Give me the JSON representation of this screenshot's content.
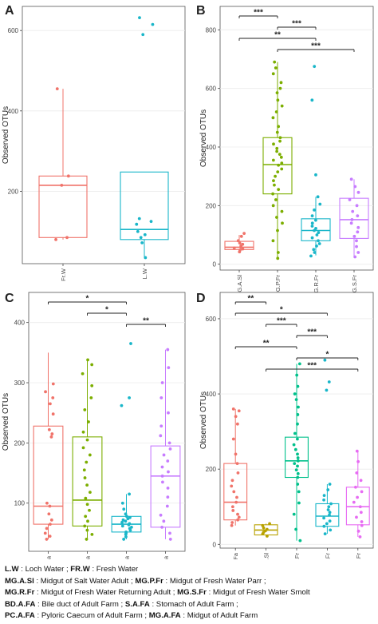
{
  "chart_data": [
    {
      "panel": "A",
      "type": "box",
      "ylabel": "Observed OTUs",
      "ylim": [
        20,
        660
      ],
      "yticks": [
        200,
        400,
        600
      ],
      "categories": [
        "Fr.W",
        "L.W"
      ],
      "colors": [
        "#f0736a",
        "#19b6c9"
      ],
      "boxes": [
        {
          "q1": 85,
          "median": 215,
          "q3": 238,
          "whisker_low": 80,
          "whisker_high": 455
        },
        {
          "q1": 80,
          "median": 105,
          "q3": 248,
          "whisker_low": 35,
          "whisker_high": 248
        }
      ],
      "points": [
        [
          85,
          80,
          215,
          238,
          455
        ],
        [
          35,
          72,
          85,
          92,
          100,
          118,
          125,
          132,
          590,
          615,
          632
        ]
      ],
      "comparisons": []
    },
    {
      "panel": "B",
      "type": "box",
      "ylabel": "Observed OTUs",
      "ylim": [
        -20,
        880
      ],
      "yticks": [
        0,
        200,
        400,
        600,
        800
      ],
      "categories": [
        "MG.A.Sl",
        "MG.P.Fr",
        "MG.R.Fr",
        "MG.S.Fr"
      ],
      "colors": [
        "#f0736a",
        "#7cae00",
        "#19b6c9",
        "#c77cff"
      ],
      "boxes": [
        {
          "q1": 50,
          "median": 58,
          "q3": 78,
          "whisker_low": 40,
          "whisker_high": 100
        },
        {
          "q1": 240,
          "median": 340,
          "q3": 432,
          "whisker_low": 20,
          "whisker_high": 690
        },
        {
          "q1": 80,
          "median": 115,
          "q3": 155,
          "whisker_low": 30,
          "whisker_high": 230
        },
        {
          "q1": 88,
          "median": 152,
          "q3": 225,
          "whisker_low": 25,
          "whisker_high": 290
        }
      ],
      "points": [
        [
          42,
          48,
          52,
          55,
          58,
          62,
          68,
          72,
          80,
          95,
          105
        ],
        [
          20,
          40,
          80,
          115,
          140,
          160,
          180,
          200,
          220,
          240,
          255,
          270,
          285,
          300,
          315,
          325,
          338,
          345,
          355,
          365,
          375,
          385,
          395,
          410,
          420,
          432,
          450,
          470,
          500,
          520,
          540,
          560,
          585,
          600,
          620,
          650,
          670,
          690
        ],
        [
          28,
          40,
          50,
          62,
          70,
          80,
          90,
          100,
          108,
          115,
          122,
          130,
          140,
          150,
          165,
          185,
          205,
          230,
          305,
          560,
          675
        ],
        [
          25,
          40,
          60,
          80,
          95,
          110,
          125,
          140,
          152,
          165,
          180,
          200,
          220,
          245,
          265,
          290
        ]
      ],
      "comparisons": [
        {
          "from": 0,
          "to": 1,
          "label": "***"
        },
        {
          "from": 1,
          "to": 2,
          "label": "***"
        },
        {
          "from": 0,
          "to": 2,
          "label": "**"
        },
        {
          "from": 1,
          "to": 3,
          "label": "***"
        }
      ]
    },
    {
      "panel": "C",
      "type": "box",
      "ylabel": "Observed OTUs",
      "ylim": [
        20,
        450
      ],
      "yticks": [
        100,
        200,
        300,
        400
      ],
      "categories": [
        "BD.A.Fa",
        "MG.A.Fa",
        "PC.A.Fa",
        "S.A.Fa"
      ],
      "colors": [
        "#f0736a",
        "#7cae00",
        "#19b6c9",
        "#c77cff"
      ],
      "boxes": [
        {
          "q1": 65,
          "median": 95,
          "q3": 228,
          "whisker_low": 40,
          "whisker_high": 350
        },
        {
          "q1": 62,
          "median": 105,
          "q3": 210,
          "whisker_low": 40,
          "whisker_high": 338
        },
        {
          "q1": 52,
          "median": 65,
          "q3": 78,
          "whisker_low": 40,
          "whisker_high": 115
        },
        {
          "q1": 60,
          "median": 145,
          "q3": 195,
          "whisker_low": 40,
          "whisker_high": 355
        }
      ],
      "points": [
        [
          40,
          45,
          50,
          58,
          65,
          72,
          82,
          95,
          100,
          210,
          215,
          222,
          248,
          265,
          275,
          285,
          298
        ],
        [
          40,
          48,
          55,
          62,
          70,
          78,
          88,
          98,
          108,
          118,
          130,
          142,
          155,
          168,
          180,
          192,
          205,
          218,
          235,
          255,
          275,
          295,
          315,
          330,
          338
        ],
        [
          40,
          44,
          48,
          50,
          52,
          55,
          58,
          60,
          62,
          64,
          66,
          68,
          70,
          72,
          74,
          76,
          78,
          82,
          90,
          100,
          115,
          262,
          275,
          365
        ],
        [
          40,
          50,
          60,
          70,
          80,
          95,
          110,
          125,
          135,
          145,
          152,
          160,
          170,
          180,
          190,
          200,
          212,
          228,
          250,
          275,
          300,
          325,
          355
        ]
      ],
      "comparisons": [
        {
          "from": 0,
          "to": 2,
          "label": "*"
        },
        {
          "from": 1,
          "to": 2,
          "label": "*"
        },
        {
          "from": 2,
          "to": 3,
          "label": "**"
        }
      ]
    },
    {
      "panel": "D",
      "type": "box",
      "ylabel": "Observed OTUs",
      "ylim": [
        -10,
        670
      ],
      "yticks": [
        0,
        200,
        400,
        600
      ],
      "categories": [
        "MG.A.Fa",
        "MG.A.Sl",
        "MG.P.Fr",
        "MG.R.Fr",
        "MG.S.Fr"
      ],
      "colors": [
        "#f0736a",
        "#b8a200",
        "#00c08b",
        "#19b6c9",
        "#e76bf3"
      ],
      "boxes": [
        {
          "q1": 65,
          "median": 112,
          "q3": 215,
          "whisker_low": 50,
          "whisker_high": 360
        },
        {
          "q1": 25,
          "median": 38,
          "q3": 52,
          "whisker_low": 22,
          "whisker_high": 55
        },
        {
          "q1": 178,
          "median": 222,
          "q3": 285,
          "whisker_low": 10,
          "whisker_high": 480
        },
        {
          "q1": 48,
          "median": 75,
          "q3": 108,
          "whisker_low": 28,
          "whisker_high": 160
        },
        {
          "q1": 52,
          "median": 100,
          "q3": 152,
          "whisker_low": 20,
          "whisker_high": 248
        }
      ],
      "points": [
        [
          50,
          58,
          65,
          72,
          80,
          90,
          100,
          112,
          125,
          140,
          155,
          170,
          190,
          215,
          240,
          280,
          320,
          340,
          355,
          360
        ],
        [
          22,
          28,
          32,
          36,
          40,
          44,
          50,
          55
        ],
        [
          10,
          40,
          80,
          110,
          140,
          160,
          178,
          188,
          198,
          208,
          215,
          222,
          230,
          240,
          252,
          265,
          280,
          295,
          320,
          345,
          365,
          385,
          400,
          420,
          450,
          480
        ],
        [
          28,
          38,
          48,
          55,
          62,
          70,
          78,
          85,
          92,
          100,
          108,
          118,
          130,
          145,
          160,
          410,
          432,
          490
        ],
        [
          20,
          35,
          50,
          60,
          72,
          85,
          100,
          112,
          125,
          140,
          152,
          170,
          190,
          220,
          248
        ]
      ],
      "comparisons": [
        {
          "from": 0,
          "to": 1,
          "label": "**"
        },
        {
          "from": 0,
          "to": 3,
          "label": "*"
        },
        {
          "from": 1,
          "to": 2,
          "label": "***"
        },
        {
          "from": 2,
          "to": 3,
          "label": "***"
        },
        {
          "from": 0,
          "to": 2,
          "label": "**"
        },
        {
          "from": 2,
          "to": 4,
          "label": "*"
        },
        {
          "from": 1,
          "to": 4,
          "label": "***"
        }
      ]
    }
  ],
  "legend": {
    "lines": [
      [
        {
          "text": "L.W",
          "bold": true
        },
        {
          "text": " : Loch Water ; ",
          "bold": false
        },
        {
          "text": "FR.W",
          "bold": true
        },
        {
          "text": " : Fresh Water",
          "bold": false
        }
      ],
      [
        {
          "text": "MG.A.Sl",
          "bold": true
        },
        {
          "text": " : Midgut of Salt Water Adult ; ",
          "bold": false
        },
        {
          "text": "MG.P.Fr",
          "bold": true
        },
        {
          "text": " : Midgut of Fresh Water Parr ;",
          "bold": false
        }
      ],
      [
        {
          "text": "MG.R.Fr",
          "bold": true
        },
        {
          "text": " : Midgut of Fresh Water Returning Adult ; ",
          "bold": false
        },
        {
          "text": "MG.S.Fr",
          "bold": true
        },
        {
          "text": " : Midgut of Fresh Water Smolt",
          "bold": false
        }
      ],
      [
        {
          "text": "BD.A.FA",
          "bold": true
        },
        {
          "text": " : Bile duct of Adult Farm ; ",
          "bold": false
        },
        {
          "text": "S.A.FA",
          "bold": true
        },
        {
          "text": " : Stomach of Adult Farm ;",
          "bold": false
        }
      ],
      [
        {
          "text": "PC.A.FA",
          "bold": true
        },
        {
          "text": " : Pyloric Caecum of Adult Farm ; ",
          "bold": false
        },
        {
          "text": "MG.A.FA",
          "bold": true
        },
        {
          "text": " : Midgut of Adult Farm",
          "bold": false
        }
      ]
    ]
  }
}
